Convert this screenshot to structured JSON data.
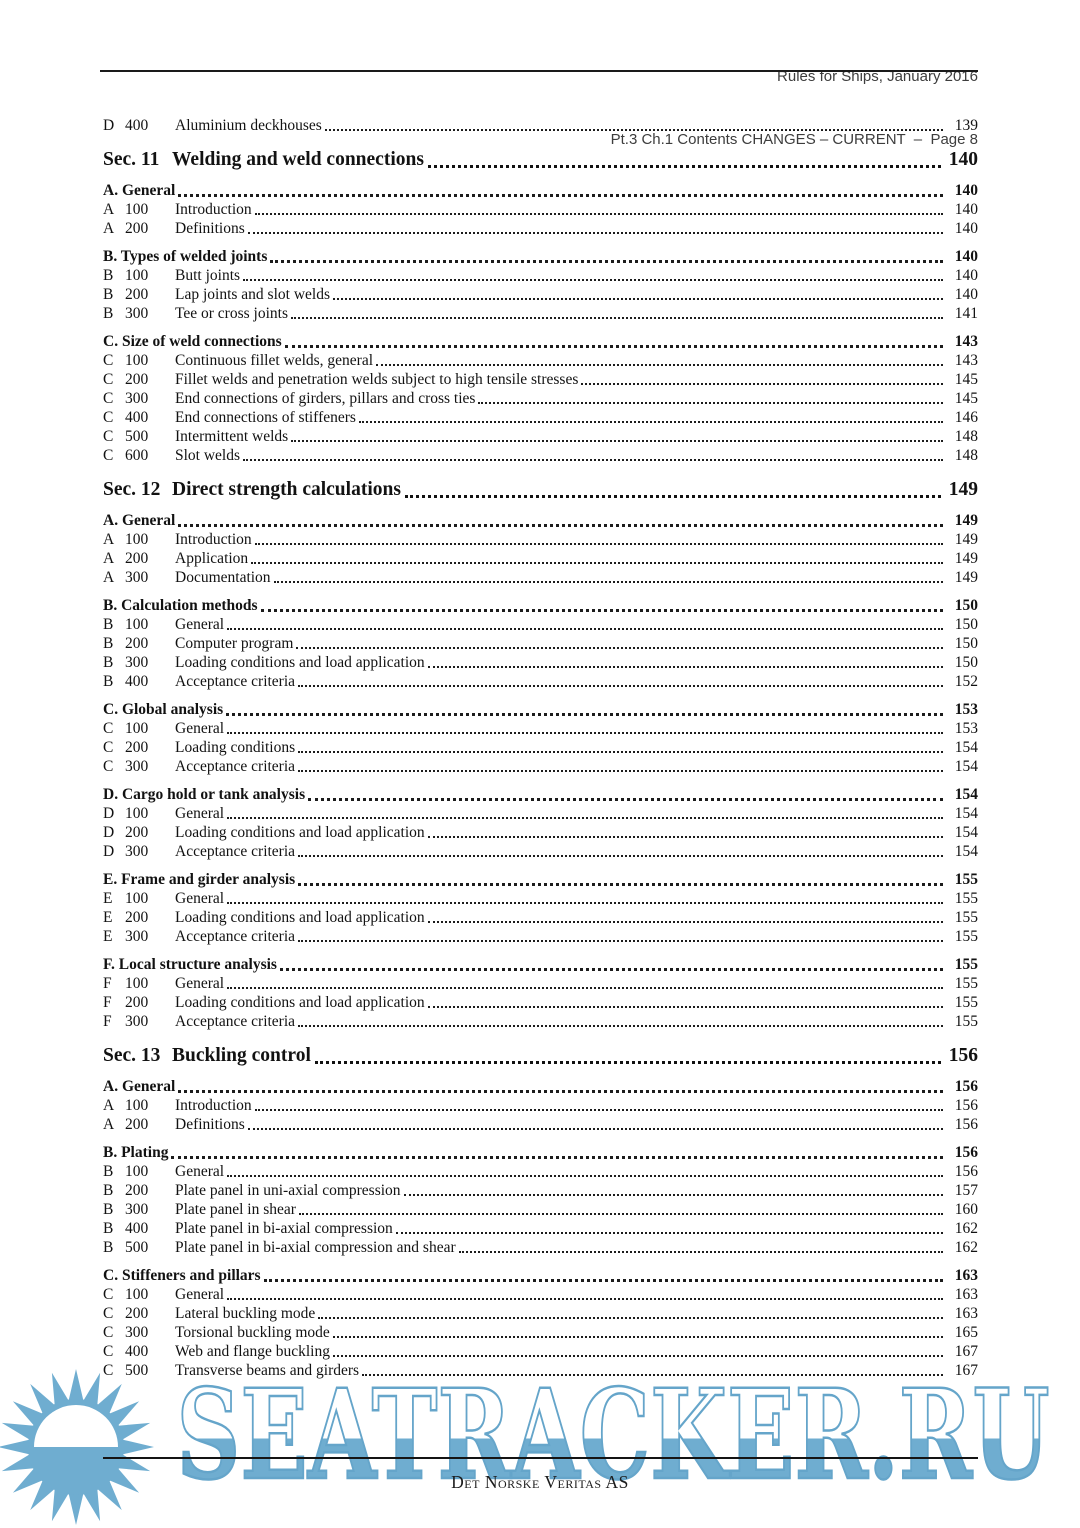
{
  "header": {
    "line1": "Rules for Ships, January 2016",
    "line2": "Pt.3 Ch.1 Contents CHANGES – CURRENT  –  Page 8"
  },
  "watermark": {
    "text": "SEATRACKER.RU",
    "blue": "#6fadd0",
    "stroke_blue": "#65a5ca"
  },
  "footer": {
    "publisher": "Det Norske Veritas AS"
  },
  "toc": {
    "blocks": [
      {
        "kind": "sub",
        "letter": "D",
        "num": "400",
        "title": "Aluminium deckhouses",
        "page": "139"
      },
      {
        "kind": "sec",
        "label": "Sec. 11",
        "title": "Welding and weld connections",
        "page": "140"
      },
      {
        "kind": "grp",
        "title": "A. General",
        "page": "140"
      },
      {
        "kind": "sub",
        "letter": "A",
        "num": "100",
        "title": "Introduction",
        "page": "140"
      },
      {
        "kind": "sub",
        "letter": "A",
        "num": "200",
        "title": "Definitions",
        "page": "140"
      },
      {
        "kind": "grp",
        "title": "B. Types of welded joints",
        "page": "140"
      },
      {
        "kind": "sub",
        "letter": "B",
        "num": "100",
        "title": "Butt joints",
        "page": "140"
      },
      {
        "kind": "sub",
        "letter": "B",
        "num": "200",
        "title": "Lap joints and slot welds",
        "page": "140"
      },
      {
        "kind": "sub",
        "letter": "B",
        "num": "300",
        "title": "Tee or cross joints",
        "page": "141"
      },
      {
        "kind": "grp",
        "title": "C. Size of weld connections",
        "page": "143"
      },
      {
        "kind": "sub",
        "letter": "C",
        "num": "100",
        "title": "Continuous fillet welds, general",
        "page": "143"
      },
      {
        "kind": "sub",
        "letter": "C",
        "num": "200",
        "title": "Fillet welds and penetration welds subject to high tensile stresses",
        "page": "145"
      },
      {
        "kind": "sub",
        "letter": "C",
        "num": "300",
        "title": "End connections of girders, pillars and cross ties",
        "page": "145"
      },
      {
        "kind": "sub",
        "letter": "C",
        "num": "400",
        "title": "End connections of stiffeners",
        "page": "146"
      },
      {
        "kind": "sub",
        "letter": "C",
        "num": "500",
        "title": "Intermittent welds",
        "page": "148"
      },
      {
        "kind": "sub",
        "letter": "C",
        "num": "600",
        "title": "Slot welds",
        "page": "148"
      },
      {
        "kind": "sec",
        "label": "Sec. 12",
        "title": "Direct strength calculations",
        "page": "149"
      },
      {
        "kind": "grp",
        "title": "A. General",
        "page": "149"
      },
      {
        "kind": "sub",
        "letter": "A",
        "num": "100",
        "title": "Introduction",
        "page": "149"
      },
      {
        "kind": "sub",
        "letter": "A",
        "num": "200",
        "title": "Application",
        "page": "149"
      },
      {
        "kind": "sub",
        "letter": "A",
        "num": "300",
        "title": "Documentation",
        "page": "149"
      },
      {
        "kind": "grp",
        "title": "B. Calculation methods",
        "page": "150"
      },
      {
        "kind": "sub",
        "letter": "B",
        "num": "100",
        "title": "General",
        "page": "150"
      },
      {
        "kind": "sub",
        "letter": "B",
        "num": "200",
        "title": "Computer program",
        "page": "150"
      },
      {
        "kind": "sub",
        "letter": "B",
        "num": "300",
        "title": "Loading conditions and load application",
        "page": "150"
      },
      {
        "kind": "sub",
        "letter": "B",
        "num": "400",
        "title": "Acceptance criteria",
        "page": "152"
      },
      {
        "kind": "grp",
        "title": "C. Global analysis",
        "page": "153"
      },
      {
        "kind": "sub",
        "letter": "C",
        "num": "100",
        "title": "General",
        "page": "153"
      },
      {
        "kind": "sub",
        "letter": "C",
        "num": "200",
        "title": "Loading conditions",
        "page": "154"
      },
      {
        "kind": "sub",
        "letter": "C",
        "num": "300",
        "title": "Acceptance criteria",
        "page": "154"
      },
      {
        "kind": "grp",
        "title": "D. Cargo hold or tank analysis",
        "page": "154"
      },
      {
        "kind": "sub",
        "letter": "D",
        "num": "100",
        "title": "General",
        "page": "154"
      },
      {
        "kind": "sub",
        "letter": "D",
        "num": "200",
        "title": "Loading conditions and load application",
        "page": "154"
      },
      {
        "kind": "sub",
        "letter": "D",
        "num": "300",
        "title": "Acceptance criteria",
        "page": "154"
      },
      {
        "kind": "grp",
        "title": "E. Frame and girder analysis",
        "page": "155"
      },
      {
        "kind": "sub",
        "letter": "E",
        "num": "100",
        "title": "General",
        "page": "155"
      },
      {
        "kind": "sub",
        "letter": "E",
        "num": "200",
        "title": "Loading conditions and load application",
        "page": "155"
      },
      {
        "kind": "sub",
        "letter": "E",
        "num": "300",
        "title": "Acceptance criteria",
        "page": "155"
      },
      {
        "kind": "grp",
        "title": "F. Local structure analysis",
        "page": "155"
      },
      {
        "kind": "sub",
        "letter": "F",
        "num": "100",
        "title": "General",
        "page": "155"
      },
      {
        "kind": "sub",
        "letter": "F",
        "num": "200",
        "title": "Loading conditions and load application",
        "page": "155"
      },
      {
        "kind": "sub",
        "letter": "F",
        "num": "300",
        "title": "Acceptance criteria",
        "page": "155"
      },
      {
        "kind": "sec",
        "label": "Sec. 13",
        "title": "Buckling control",
        "page": "156"
      },
      {
        "kind": "grp",
        "title": "A. General",
        "page": "156"
      },
      {
        "kind": "sub",
        "letter": "A",
        "num": "100",
        "title": "Introduction",
        "page": "156"
      },
      {
        "kind": "sub",
        "letter": "A",
        "num": "200",
        "title": "Definitions",
        "page": "156"
      },
      {
        "kind": "grp",
        "title": "B. Plating",
        "page": "156"
      },
      {
        "kind": "sub",
        "letter": "B",
        "num": "100",
        "title": "General",
        "page": "156"
      },
      {
        "kind": "sub",
        "letter": "B",
        "num": "200",
        "title": "Plate panel in uni-axial compression",
        "page": "157"
      },
      {
        "kind": "sub",
        "letter": "B",
        "num": "300",
        "title": "Plate panel in shear",
        "page": "160"
      },
      {
        "kind": "sub",
        "letter": "B",
        "num": "400",
        "title": "Plate panel in bi-axial compression",
        "page": "162"
      },
      {
        "kind": "sub",
        "letter": "B",
        "num": "500",
        "title": "Plate panel in bi-axial compression and shear",
        "page": "162"
      },
      {
        "kind": "grp",
        "title": "C. Stiffeners and pillars",
        "page": "163"
      },
      {
        "kind": "sub",
        "letter": "C",
        "num": "100",
        "title": "General",
        "page": "163"
      },
      {
        "kind": "sub",
        "letter": "C",
        "num": "200",
        "title": "Lateral buckling mode",
        "page": "163"
      },
      {
        "kind": "sub",
        "letter": "C",
        "num": "300",
        "title": "Torsional buckling mode",
        "page": "165"
      },
      {
        "kind": "sub",
        "letter": "C",
        "num": "400",
        "title": "Web and flange buckling",
        "page": "167"
      },
      {
        "kind": "sub",
        "letter": "C",
        "num": "500",
        "title": "Transverse beams and girders",
        "page": "167"
      }
    ]
  }
}
